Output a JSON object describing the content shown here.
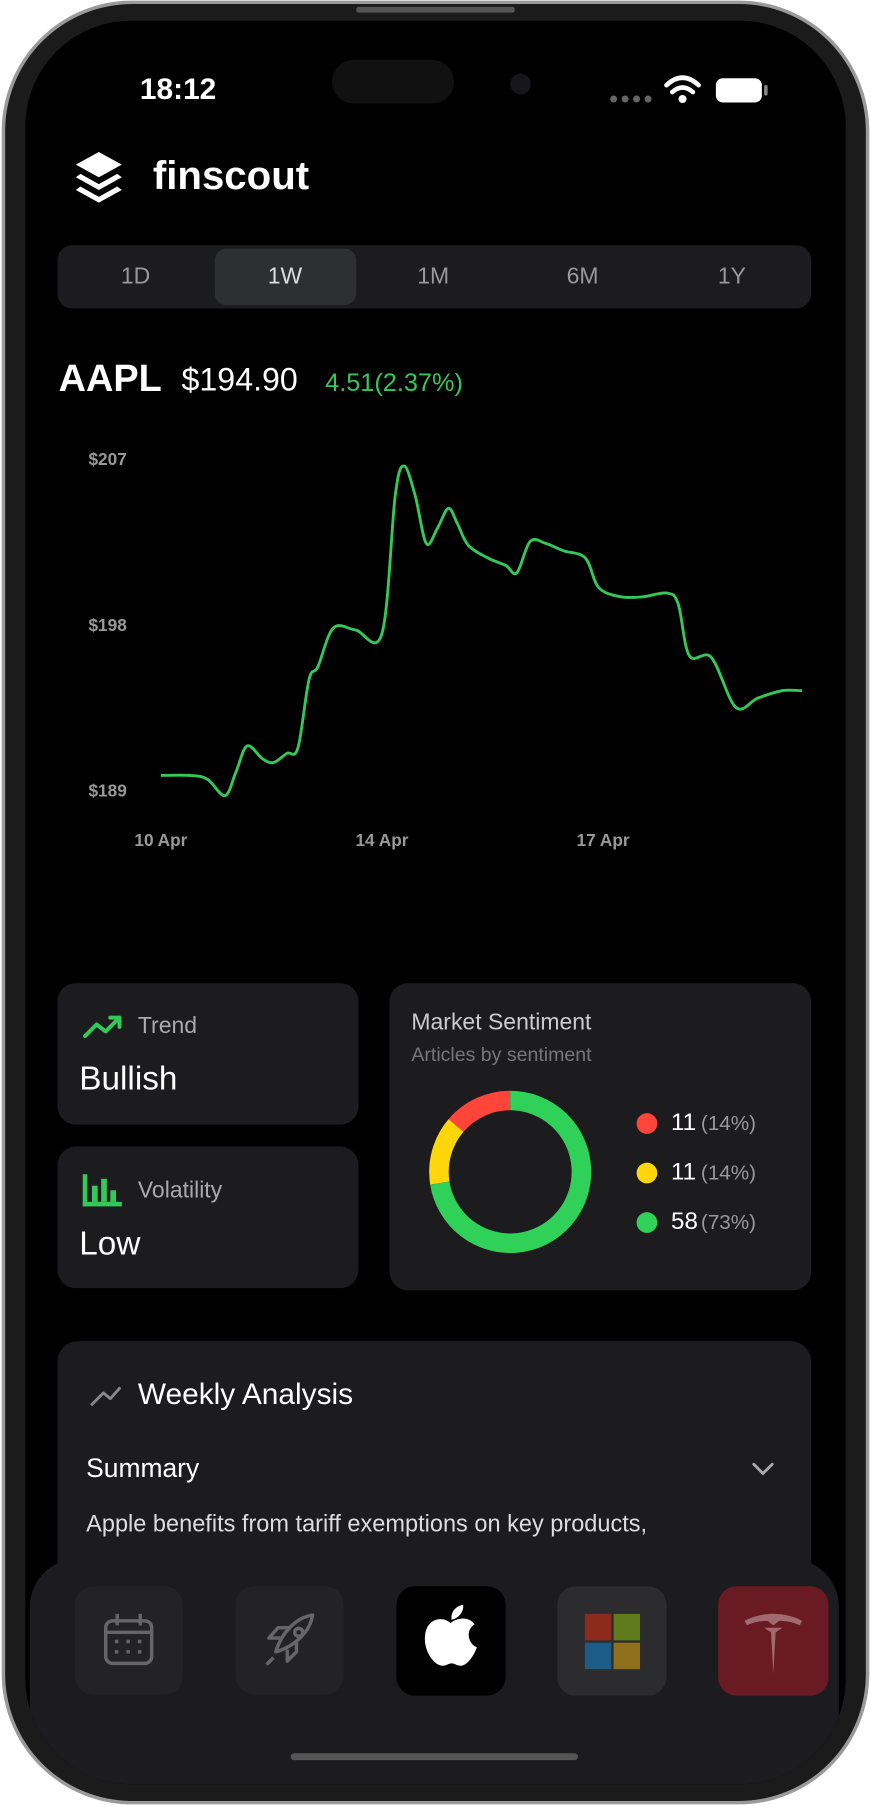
{
  "status_bar": {
    "time": "18:12"
  },
  "header": {
    "app_name": "finscout"
  },
  "range_tabs": [
    "1D",
    "1W",
    "1M",
    "6M",
    "1Y"
  ],
  "quote": {
    "symbol": "AAPL",
    "price": "$194.90",
    "change": "4.51(2.37%)"
  },
  "chart_data": [
    {
      "type": "line",
      "x": [
        0,
        0.13,
        0.21,
        0.29,
        0.34,
        0.39,
        0.46,
        0.51,
        0.57,
        0.62,
        0.67,
        0.71,
        0.78,
        0.88,
        1.0,
        1.06,
        1.1,
        1.15,
        1.2,
        1.25,
        1.3,
        1.34,
        1.39,
        1.48,
        1.56,
        1.61,
        1.67,
        1.74,
        1.82,
        1.92,
        1.98,
        2.08,
        2.18,
        2.29,
        2.34,
        2.39,
        2.49,
        2.6,
        2.7,
        2.81,
        2.9
      ],
      "series": [
        {
          "color": "#34c759",
          "values": [
            189.9,
            189.9,
            189.7,
            188.8,
            190.1,
            191.5,
            190.8,
            190.6,
            191.1,
            191.4,
            195.1,
            195.8,
            197.9,
            197.8,
            197.6,
            205.1,
            206.7,
            205.1,
            202.5,
            203.3,
            204.4,
            203.6,
            202.4,
            201.7,
            201.3,
            200.9,
            202.6,
            202.5,
            202.1,
            201.7,
            200.1,
            199.6,
            199.6,
            199.8,
            199.2,
            196.4,
            196.3,
            193.6,
            194.1,
            194.5,
            194.5
          ]
        }
      ],
      "xlim": [
        0,
        2.9
      ],
      "xticks": [
        {
          "value": 0,
          "label": "10 Apr"
        },
        {
          "value": 1,
          "label": "14 Apr"
        },
        {
          "value": 2,
          "label": "17 Apr"
        }
      ],
      "ylim": [
        189,
        207
      ],
      "yticks": [
        {
          "value": 189,
          "label": "$189"
        },
        {
          "value": 198,
          "label": "$198"
        },
        {
          "value": 207,
          "label": "$207"
        }
      ]
    },
    {
      "type": "pie",
      "title": "Market Sentiment",
      "subtitle": "Articles by sentiment",
      "values": [
        11,
        11,
        58
      ],
      "percent_labels": [
        "(14%)",
        "(14%)",
        "(73%)"
      ],
      "colors": [
        "#ff453a",
        "#ffd60a",
        "#30d158"
      ]
    }
  ],
  "cards": {
    "trend": {
      "label": "Trend",
      "value": "Bullish"
    },
    "volatility": {
      "label": "Volatility",
      "value": "Low"
    }
  },
  "analysis": {
    "title": "Weekly Analysis",
    "section": "Summary",
    "text": "Apple benefits from tariff exemptions on key products,"
  }
}
